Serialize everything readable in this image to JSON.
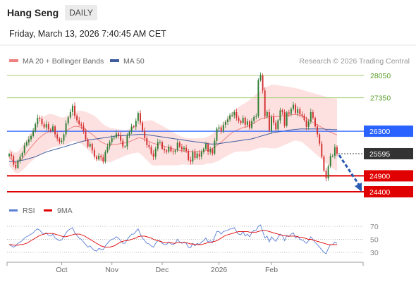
{
  "header": {
    "instrument": "Hang Seng",
    "timeframe": "DAILY",
    "datetime": "Friday, March 13, 2026 7:40:45 AM CET"
  },
  "legend": {
    "ma20_bb": "MA 20 + Bollinger Bands",
    "ma50": "MA 50",
    "source": "Research © 2026 Trading Central",
    "rsi": "RSI",
    "ma9": "9MA"
  },
  "colors": {
    "up_candle": "#2e7d32",
    "down_candle": "#d32f2f",
    "bollinger_fill": "#fde1e1",
    "ma20": "#f08080",
    "ma50": "#3f5c9e",
    "pivot": "#2962ff",
    "resistance": "#a5d27a",
    "support": "#e00000",
    "last_price": "#333333",
    "arrow": "#2a5bb0",
    "rsi": "#5b7fd6",
    "rsi_ma9": "#e00000"
  },
  "chart_data": [
    {
      "type": "candlestick",
      "title": "Hang Seng",
      "x_ticks": [
        "Oct",
        "Nov",
        "Dec",
        "2026",
        "Feb"
      ],
      "ylim": [
        24100,
        28400
      ],
      "levels": [
        {
          "label": "28050",
          "value": 28050,
          "kind": "resistance"
        },
        {
          "label": "27350",
          "value": 27350,
          "kind": "resistance"
        },
        {
          "label": "26300",
          "value": 26300,
          "kind": "pivot"
        },
        {
          "label": "25595",
          "value": 25595,
          "kind": "last"
        },
        {
          "label": "24900",
          "value": 24900,
          "kind": "support"
        },
        {
          "label": "24400",
          "value": 24400,
          "kind": "support"
        }
      ],
      "closes": [
        25580,
        25520,
        25250,
        25150,
        25380,
        25500,
        25620,
        25850,
        25950,
        26050,
        26150,
        26300,
        26520,
        26720,
        26680,
        26520,
        26420,
        26520,
        26360,
        26310,
        26450,
        26200,
        26070,
        25960,
        26000,
        26200,
        26550,
        26730,
        26900,
        27100,
        26780,
        26640,
        26520,
        26470,
        26310,
        26050,
        25820,
        25900,
        25700,
        25500,
        25420,
        25530,
        25480,
        25350,
        25650,
        25820,
        25960,
        26080,
        26100,
        26230,
        26170,
        26000,
        25820,
        25820,
        26160,
        26280,
        26450,
        26440,
        26620,
        26870,
        26570,
        26320,
        26080,
        25860,
        25800,
        25600,
        25500,
        25750,
        25960,
        25960,
        25750,
        25700,
        25660,
        25810,
        25670,
        25650,
        25700,
        25940,
        25810,
        25730,
        25780,
        25680,
        25400,
        25350,
        25650,
        25460,
        25600,
        25500,
        25650,
        25750,
        25900,
        25650,
        25730,
        25600,
        26000,
        26380,
        26420,
        26290,
        26500,
        26590,
        26670,
        26800,
        26800,
        26900,
        26720,
        26620,
        26560,
        26720,
        26500,
        26610,
        26400,
        26620,
        26750,
        26770,
        27900,
        28050,
        27580,
        26760,
        26900,
        26320,
        26750,
        26570,
        26360,
        26640,
        26960,
        26900,
        26470,
        26890,
        26850,
        27000,
        27130,
        26870,
        26990,
        26830,
        26790,
        26650,
        26440,
        26600,
        26900,
        26720,
        26450,
        26200,
        25910,
        25500,
        25060,
        24820,
        25200,
        25520,
        25530,
        25800,
        25595
      ],
      "ma20": [
        25480,
        25420,
        25350,
        25300,
        25320,
        25380,
        25450,
        25530,
        25620,
        25720,
        25800,
        25880,
        25960,
        26040,
        26100,
        26160,
        26210,
        26250,
        26280,
        26300,
        26310,
        26310,
        26300,
        26290,
        26290,
        26300,
        26320,
        26350,
        26390,
        26430,
        26450,
        26450,
        26440,
        26420,
        26390,
        26350,
        26300,
        26250,
        26200,
        26140,
        26080,
        26020,
        25970,
        25930,
        25900,
        25880,
        25870,
        25870,
        25880,
        25890,
        25900,
        25910,
        25920,
        25930,
        25950,
        25970,
        26000,
        26030,
        26060,
        26090,
        26090,
        26070,
        26040,
        26010,
        25980,
        25950,
        25920,
        25900,
        25880,
        25870,
        25850,
        25830,
        25810,
        25790,
        25770,
        25750,
        25730,
        25710,
        25700,
        25690,
        25680,
        25670,
        25660,
        25660,
        25660,
        25660,
        25660,
        25660,
        25660,
        25670,
        25690,
        25710,
        25730,
        25760,
        25800,
        25850,
        25900,
        25960,
        26020,
        26080,
        26140,
        26200,
        26250,
        26300,
        26330,
        26360,
        26390,
        26410,
        26430,
        26450,
        26480,
        26520,
        26560,
        26600,
        26640,
        26680,
        26700,
        26720,
        26740,
        26750,
        26760,
        26760,
        26760,
        26760,
        26770,
        26780,
        26790,
        26800,
        26810,
        26820,
        26830,
        26830,
        26820,
        26800,
        26780,
        26740,
        26700,
        26660,
        26620,
        26580,
        26540,
        26500,
        26460,
        26420,
        26380,
        26340,
        26300,
        26270,
        26240,
        26210,
        26180
      ],
      "ma50": [
        25350,
        25350,
        25350,
        25360,
        25370,
        25380,
        25390,
        25400,
        25420,
        25440,
        25460,
        25480,
        25500,
        25530,
        25560,
        25590,
        25620,
        25650,
        25670,
        25690,
        25710,
        25730,
        25750,
        25770,
        25790,
        25810,
        25830,
        25850,
        25870,
        25890,
        25910,
        25930,
        25950,
        25970,
        25990,
        26010,
        26020,
        26030,
        26040,
        26050,
        26060,
        26070,
        26080,
        26090,
        26100,
        26110,
        26120,
        26130,
        26140,
        26150,
        26160,
        26160,
        26160,
        26170,
        26170,
        26180,
        26180,
        26190,
        26190,
        26200,
        26200,
        26200,
        26200,
        26190,
        26180,
        26170,
        26160,
        26150,
        26140,
        26130,
        26120,
        26110,
        26100,
        26090,
        26080,
        26070,
        26060,
        26050,
        26040,
        26030,
        26020,
        26010,
        26000,
        25990,
        25980,
        25970,
        25960,
        25950,
        25940,
        25930,
        25920,
        25910,
        25900,
        25900,
        25900,
        25900,
        25910,
        25920,
        25930,
        25940,
        25950,
        25960,
        25970,
        25980,
        25990,
        26000,
        26010,
        26020,
        26030,
        26040,
        26050,
        26060,
        26080,
        26100,
        26120,
        26140,
        26160,
        26180,
        26200,
        26220,
        26240,
        26260,
        26270,
        26280,
        26290,
        26300,
        26310,
        26320,
        26330,
        26340,
        26350,
        26360,
        26360,
        26370,
        26370,
        26370,
        26370,
        26370,
        26370,
        26370,
        26370,
        26370,
        26370,
        26370,
        26370,
        26360,
        26360,
        26360,
        26350,
        26350,
        26350
      ],
      "bb_halfwidth": [
        260,
        280,
        300,
        320,
        340,
        360,
        380,
        400,
        420,
        440,
        460,
        480,
        500,
        520,
        540,
        560,
        560,
        560,
        560,
        540,
        520,
        500,
        480,
        460,
        440,
        440,
        440,
        440,
        440,
        440,
        460,
        480,
        500,
        520,
        540,
        560,
        580,
        600,
        620,
        640,
        640,
        640,
        620,
        600,
        580,
        560,
        540,
        520,
        500,
        480,
        460,
        440,
        420,
        400,
        400,
        400,
        400,
        420,
        440,
        460,
        500,
        540,
        580,
        620,
        660,
        700,
        700,
        680,
        660,
        640,
        620,
        600,
        580,
        560,
        540,
        520,
        500,
        480,
        460,
        440,
        420,
        420,
        420,
        420,
        420,
        420,
        420,
        420,
        420,
        420,
        420,
        420,
        440,
        460,
        480,
        500,
        520,
        540,
        560,
        580,
        600,
        620,
        640,
        660,
        680,
        700,
        720,
        740,
        760,
        780,
        800,
        820,
        840,
        860,
        880,
        900,
        920,
        940,
        960,
        980,
        1000,
        1000,
        1000,
        980,
        960,
        940,
        920,
        900,
        880,
        860,
        840,
        820,
        820,
        820,
        820,
        840,
        860,
        880,
        900,
        920,
        940,
        960,
        980,
        1000,
        1020,
        1040,
        1060,
        1080,
        1100,
        1120,
        1140
      ]
    },
    {
      "type": "line",
      "title": "RSI",
      "ylim": [
        20,
        80
      ],
      "y_ticks": [
        30,
        50,
        70
      ],
      "series": [
        {
          "name": "RSI",
          "values": [
            42,
            40,
            38,
            40,
            44,
            46,
            48,
            52,
            54,
            56,
            58,
            60,
            64,
            66,
            64,
            60,
            58,
            60,
            56,
            55,
            58,
            52,
            50,
            48,
            49,
            54,
            60,
            64,
            66,
            68,
            60,
            56,
            52,
            50,
            46,
            42,
            38,
            40,
            36,
            33,
            32,
            36,
            35,
            34,
            40,
            44,
            48,
            50,
            51,
            54,
            52,
            48,
            44,
            44,
            50,
            54,
            58,
            58,
            62,
            66,
            58,
            52,
            48,
            44,
            43,
            40,
            38,
            44,
            48,
            48,
            44,
            42,
            42,
            46,
            43,
            42,
            44,
            50,
            46,
            44,
            46,
            44,
            38,
            37,
            44,
            40,
            44,
            42,
            46,
            48,
            52,
            46,
            48,
            45,
            54,
            62,
            62,
            58,
            62,
            63,
            64,
            66,
            66,
            68,
            62,
            58,
            57,
            62,
            55,
            58,
            54,
            60,
            64,
            64,
            70,
            72,
            62,
            52,
            55,
            46,
            54,
            50,
            47,
            53,
            58,
            56,
            48,
            56,
            54,
            58,
            60,
            52,
            55,
            50,
            49,
            47,
            44,
            48,
            54,
            50,
            45,
            42,
            38,
            34,
            30,
            28,
            36,
            42,
            42,
            46,
            44
          ]
        },
        {
          "name": "9MA",
          "values": [
            42,
            42,
            41,
            41,
            41,
            42,
            42,
            43,
            44,
            46,
            48,
            50,
            52,
            54,
            56,
            57,
            58,
            59,
            59,
            59,
            59,
            58,
            57,
            56,
            55,
            54,
            54,
            55,
            56,
            57,
            58,
            58,
            58,
            57,
            56,
            54,
            52,
            50,
            48,
            46,
            44,
            42,
            40,
            39,
            38,
            38,
            38,
            39,
            40,
            42,
            44,
            46,
            47,
            48,
            48,
            49,
            50,
            51,
            52,
            54,
            55,
            55,
            55,
            54,
            53,
            52,
            50,
            49,
            48,
            47,
            46,
            45,
            45,
            45,
            45,
            44,
            44,
            45,
            45,
            45,
            45,
            45,
            44,
            43,
            43,
            42,
            42,
            42,
            42,
            43,
            44,
            45,
            45,
            46,
            47,
            48,
            50,
            52,
            54,
            56,
            57,
            58,
            59,
            60,
            61,
            62,
            62,
            62,
            62,
            62,
            61,
            61,
            61,
            61,
            62,
            63,
            64,
            64,
            63,
            62,
            61,
            60,
            59,
            58,
            57,
            56,
            56,
            55,
            55,
            55,
            55,
            55,
            54,
            53,
            53,
            52,
            51,
            50,
            50,
            49,
            48,
            47,
            46,
            45,
            44,
            43,
            42,
            42,
            42,
            42,
            42
          ]
        }
      ]
    }
  ]
}
